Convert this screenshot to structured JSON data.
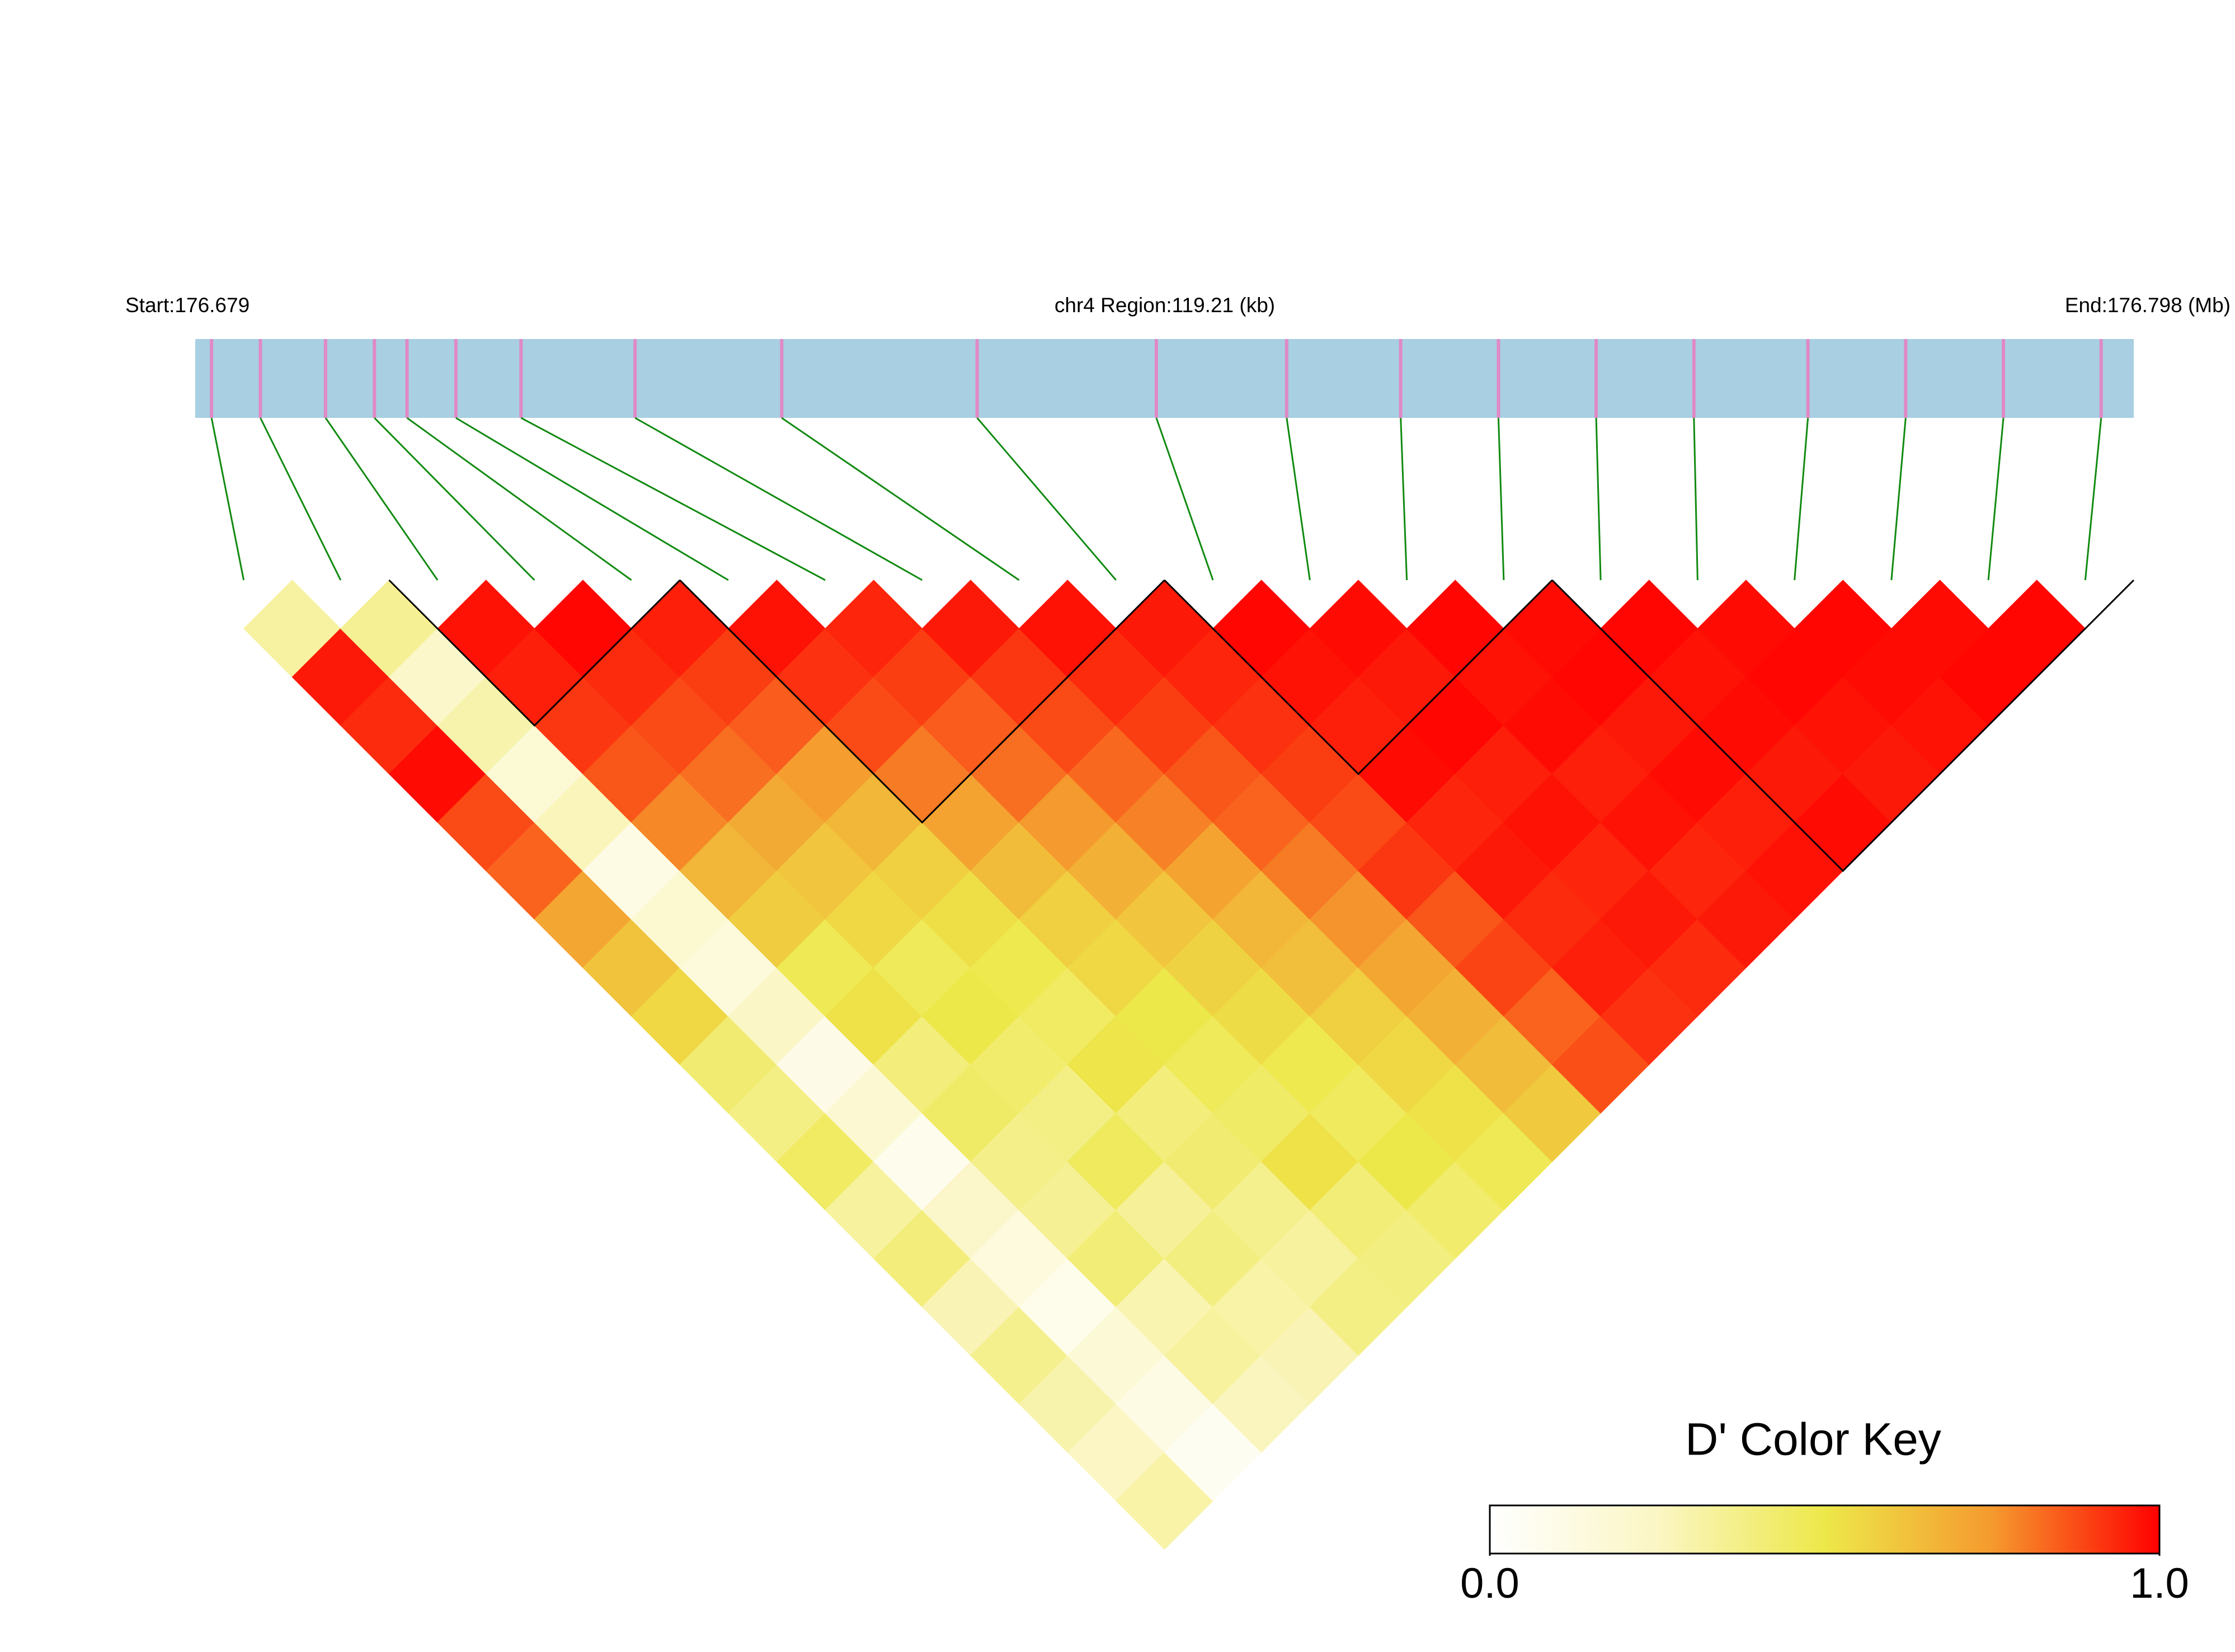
{
  "chart_data": {
    "type": "ld-heatmap",
    "start_label": "Start:176.679",
    "region_label": "chr4 Region:119.21 (kb)",
    "end_label": "End:176.798 (Mb)",
    "xlim": [
      176.679,
      176.798
    ],
    "positions": [
      176.68,
      176.683,
      176.687,
      176.69,
      176.692,
      176.695,
      176.699,
      176.706,
      176.715,
      176.727,
      176.738,
      176.746,
      176.753,
      176.759,
      176.765,
      176.771,
      176.778,
      176.784,
      176.79,
      176.796
    ],
    "dprime": [
      [
        0.32,
        0.96,
        0.93,
        0.98,
        0.88,
        0.84,
        0.71,
        0.62,
        0.55,
        0.42,
        0.38,
        0.45,
        0.33,
        0.4,
        0.28,
        0.36,
        0.3,
        0.25,
        0.31
      ],
      [
        0.35,
        0.22,
        0.3,
        0.18,
        0.27,
        0.12,
        0.2,
        0.15,
        0.24,
        0.1,
        0.19,
        0.08,
        0.22,
        0.14,
        0.09,
        0.17,
        0.12,
        0.06
      ],
      [
        0.97,
        0.95,
        0.91,
        0.86,
        0.78,
        0.66,
        0.59,
        0.48,
        0.52,
        0.4,
        0.44,
        0.37,
        0.35,
        0.41,
        0.29,
        0.33,
        0.26
      ],
      [
        0.99,
        0.93,
        0.88,
        0.82,
        0.7,
        0.61,
        0.55,
        0.47,
        0.5,
        0.43,
        0.38,
        0.46,
        0.34,
        0.39,
        0.31,
        0.28
      ],
      [
        0.95,
        0.9,
        0.85,
        0.74,
        0.66,
        0.58,
        0.53,
        0.49,
        0.45,
        0.51,
        0.4,
        0.42,
        0.36,
        0.33,
        0.38
      ],
      [
        0.97,
        0.92,
        0.88,
        0.8,
        0.72,
        0.64,
        0.58,
        0.55,
        0.5,
        0.47,
        0.44,
        0.52,
        0.41,
        0.39
      ],
      [
        0.94,
        0.9,
        0.85,
        0.82,
        0.75,
        0.68,
        0.61,
        0.57,
        0.54,
        0.49,
        0.46,
        0.5,
        0.43
      ],
      [
        0.96,
        0.91,
        0.88,
        0.83,
        0.79,
        0.72,
        0.66,
        0.63,
        0.58,
        0.55,
        0.52,
        0.48
      ],
      [
        0.97,
        0.93,
        0.9,
        0.86,
        0.84,
        0.8,
        0.76,
        0.71,
        0.68,
        0.64,
        0.6
      ],
      [
        0.96,
        0.94,
        0.92,
        0.9,
        0.88,
        0.91,
        0.86,
        0.89,
        0.84,
        0.87
      ],
      [
        0.99,
        0.97,
        0.95,
        0.98,
        0.94,
        0.96,
        0.93,
        0.95,
        0.92
      ],
      [
        0.98,
        0.96,
        0.99,
        0.95,
        0.97,
        0.94,
        0.96,
        0.93
      ],
      [
        0.99,
        0.97,
        0.98,
        0.95,
        0.97,
        0.94,
        0.96
      ],
      [
        0.98,
        0.99,
        0.96,
        0.98,
        0.95,
        0.97
      ],
      [
        0.99,
        0.97,
        0.98,
        0.96,
        0.98
      ],
      [
        0.98,
        0.99,
        0.97,
        0.96
      ],
      [
        0.99,
        0.98,
        0.97
      ],
      [
        0.98,
        0.99
      ],
      [
        0.99
      ]
    ],
    "blocks": [
      [
        2,
        4
      ],
      [
        5,
        9
      ],
      [
        10,
        13
      ],
      [
        14,
        19
      ]
    ],
    "bar_color": "#a8cfe2",
    "snp_color": "#e089c6",
    "link_color": "#118a11",
    "block_color": "#000000",
    "colorbar": {
      "title": "D' Color Key",
      "clim": [
        0,
        1
      ],
      "ticks": [
        {
          "value": 0,
          "label": "0.0"
        },
        {
          "value": 1,
          "label": "1.0"
        }
      ],
      "colors": [
        "#ffffff",
        "#fbf6c4",
        "#ede84a",
        "#f59a2e",
        "#ff0000"
      ]
    }
  }
}
